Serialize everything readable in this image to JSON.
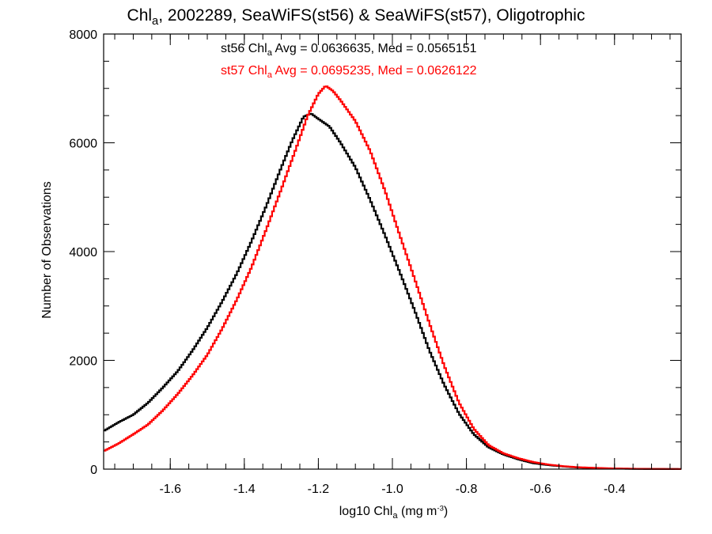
{
  "chart_data": {
    "type": "line",
    "title": {
      "prefix": "Chl",
      "sub": "a",
      "rest": ", 2002289, SeaWiFS(st56) & SeaWiFS(st57), Oligotrophic"
    },
    "xlabel": {
      "prefix": "log10 Chl",
      "sub": "a",
      "mid": " (mg m",
      "sup": "-3",
      "suffix": ")"
    },
    "ylabel": "Number of Observations",
    "xlim": [
      -1.78,
      -0.22
    ],
    "ylim": [
      0,
      8000
    ],
    "x_ticks": [
      "-1.6",
      "-1.4",
      "-1.2",
      "-1.0",
      "-0.8",
      "-0.6",
      "-0.4"
    ],
    "y_ticks": [
      "0",
      "2000",
      "4000",
      "6000",
      "8000"
    ],
    "annotations": [
      {
        "prefix": "st56 Chl",
        "sub": "a",
        "rest": " Avg = 0.0636635, Med = 0.0565151",
        "color": "#000000"
      },
      {
        "prefix": "st57 Chl",
        "sub": "a",
        "rest": " Avg = 0.0695235, Med = 0.0626122",
        "color": "#ff0000"
      }
    ],
    "series": [
      {
        "name": "st56",
        "color": "#000000",
        "points": [
          [
            -1.78,
            700
          ],
          [
            -1.74,
            860
          ],
          [
            -1.7,
            1000
          ],
          [
            -1.66,
            1220
          ],
          [
            -1.62,
            1500
          ],
          [
            -1.58,
            1800
          ],
          [
            -1.54,
            2180
          ],
          [
            -1.5,
            2600
          ],
          [
            -1.46,
            3080
          ],
          [
            -1.42,
            3600
          ],
          [
            -1.38,
            4200
          ],
          [
            -1.34,
            4850
          ],
          [
            -1.3,
            5550
          ],
          [
            -1.27,
            6050
          ],
          [
            -1.24,
            6480
          ],
          [
            -1.22,
            6540
          ],
          [
            -1.2,
            6440
          ],
          [
            -1.17,
            6300
          ],
          [
            -1.14,
            6000
          ],
          [
            -1.1,
            5550
          ],
          [
            -1.06,
            4950
          ],
          [
            -1.02,
            4300
          ],
          [
            -0.98,
            3620
          ],
          [
            -0.94,
            2920
          ],
          [
            -0.9,
            2180
          ],
          [
            -0.86,
            1550
          ],
          [
            -0.82,
            1020
          ],
          [
            -0.78,
            640
          ],
          [
            -0.74,
            400
          ],
          [
            -0.7,
            270
          ],
          [
            -0.66,
            180
          ],
          [
            -0.62,
            110
          ],
          [
            -0.58,
            75
          ],
          [
            -0.54,
            50
          ],
          [
            -0.5,
            30
          ],
          [
            -0.45,
            18
          ],
          [
            -0.4,
            10
          ],
          [
            -0.35,
            6
          ],
          [
            -0.3,
            3
          ],
          [
            -0.22,
            1
          ]
        ]
      },
      {
        "name": "st57",
        "color": "#ff0000",
        "points": [
          [
            -1.78,
            330
          ],
          [
            -1.74,
            470
          ],
          [
            -1.7,
            640
          ],
          [
            -1.66,
            820
          ],
          [
            -1.62,
            1080
          ],
          [
            -1.58,
            1380
          ],
          [
            -1.54,
            1720
          ],
          [
            -1.5,
            2100
          ],
          [
            -1.46,
            2580
          ],
          [
            -1.42,
            3120
          ],
          [
            -1.38,
            3720
          ],
          [
            -1.34,
            4420
          ],
          [
            -1.3,
            5150
          ],
          [
            -1.26,
            5900
          ],
          [
            -1.23,
            6480
          ],
          [
            -1.2,
            6900
          ],
          [
            -1.18,
            7050
          ],
          [
            -1.16,
            6950
          ],
          [
            -1.14,
            6780
          ],
          [
            -1.1,
            6400
          ],
          [
            -1.06,
            5850
          ],
          [
            -1.02,
            5120
          ],
          [
            -0.98,
            4300
          ],
          [
            -0.94,
            3500
          ],
          [
            -0.9,
            2680
          ],
          [
            -0.86,
            1900
          ],
          [
            -0.82,
            1220
          ],
          [
            -0.78,
            740
          ],
          [
            -0.74,
            440
          ],
          [
            -0.7,
            290
          ],
          [
            -0.66,
            200
          ],
          [
            -0.62,
            130
          ],
          [
            -0.58,
            85
          ],
          [
            -0.54,
            55
          ],
          [
            -0.5,
            35
          ],
          [
            -0.45,
            22
          ],
          [
            -0.4,
            12
          ],
          [
            -0.35,
            7
          ],
          [
            -0.3,
            4
          ],
          [
            -0.22,
            2
          ]
        ]
      }
    ]
  }
}
